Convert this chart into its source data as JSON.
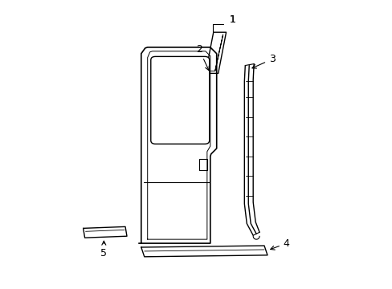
{
  "background_color": "#ffffff",
  "line_color": "#000000",
  "lw": 1.0,
  "label_fontsize": 9,
  "fig_width": 4.89,
  "fig_height": 3.6,
  "dpi": 100
}
